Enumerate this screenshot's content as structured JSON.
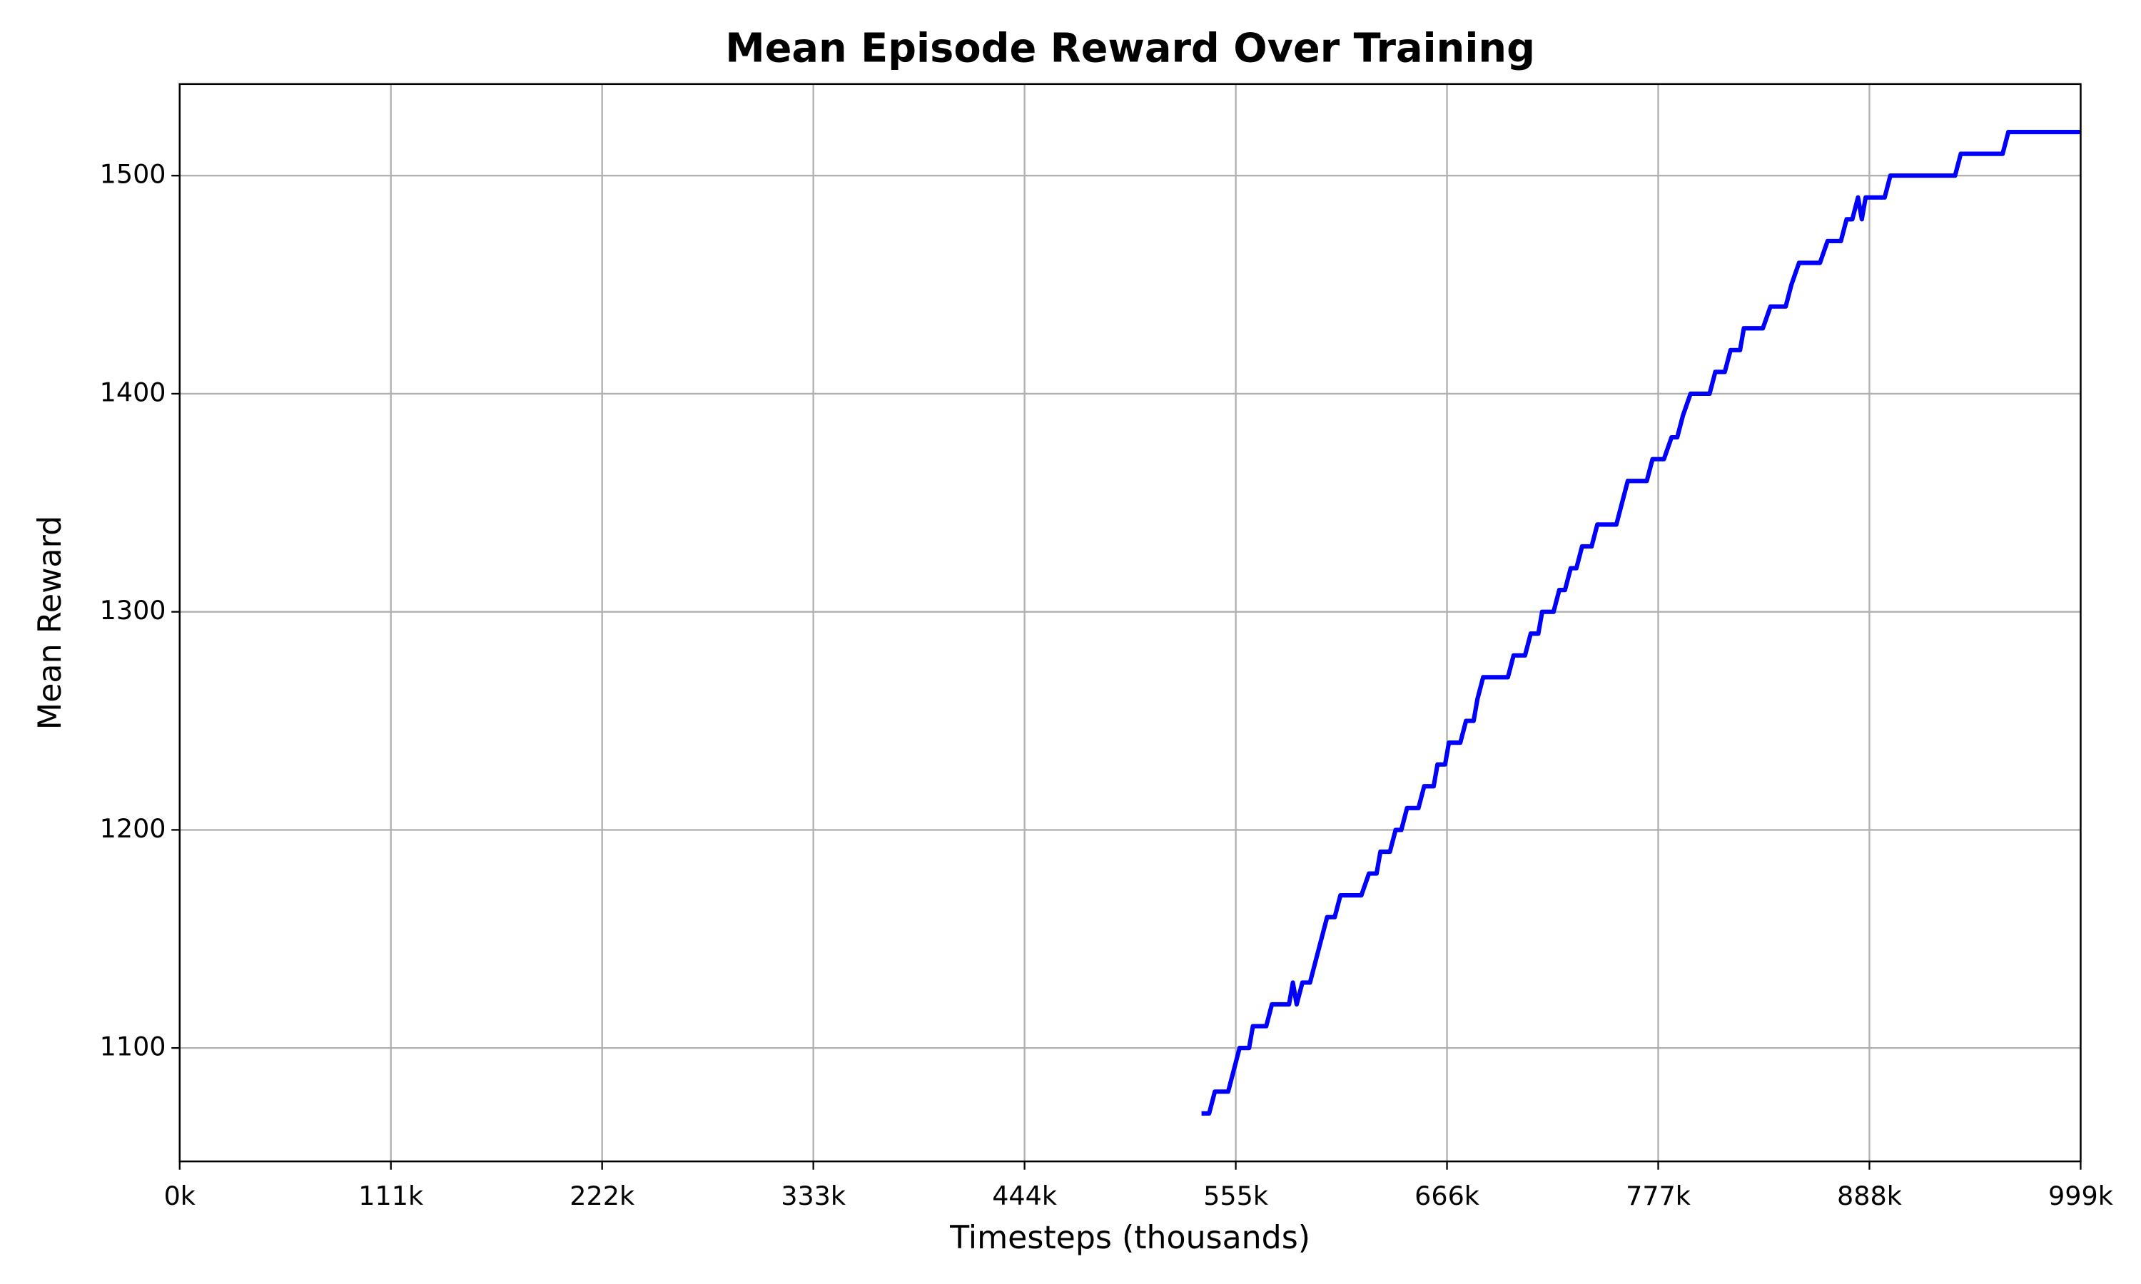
{
  "chart_data": {
    "type": "line",
    "title": "Mean Episode Reward Over Training",
    "x_label": "Timesteps (thousands)",
    "y_label": "Mean Reward",
    "xlim": [
      0,
      999
    ],
    "ylim": [
      1048,
      1542
    ],
    "xticks": [
      {
        "value": 0,
        "label": "0k"
      },
      {
        "value": 111,
        "label": "111k"
      },
      {
        "value": 222,
        "label": "222k"
      },
      {
        "value": 333,
        "label": "333k"
      },
      {
        "value": 444,
        "label": "444k"
      },
      {
        "value": 555,
        "label": "555k"
      },
      {
        "value": 666,
        "label": "666k"
      },
      {
        "value": 777,
        "label": "777k"
      },
      {
        "value": 888,
        "label": "888k"
      },
      {
        "value": 999,
        "label": "999k"
      }
    ],
    "yticks": [
      1100,
      1200,
      1300,
      1400,
      1500
    ],
    "grid": true,
    "series": [
      {
        "color": "#0000ff",
        "x": [
          537,
          541,
          544,
          551,
          554,
          557,
          562,
          564,
          571,
          574,
          583,
          585,
          587,
          590,
          594,
          597,
          600,
          603,
          607,
          610,
          621,
          625,
          629,
          631,
          636,
          639,
          642,
          645,
          651,
          654,
          659,
          661,
          665,
          667,
          673,
          676,
          680,
          682,
          685,
          698,
          701,
          707,
          710,
          714,
          716,
          722,
          725,
          728,
          731,
          734,
          737,
          742,
          745,
          755,
          758,
          761,
          771,
          774,
          780,
          784,
          787,
          790,
          794,
          804,
          807,
          812,
          815,
          820,
          822,
          832,
          836,
          844,
          847,
          851,
          862,
          866,
          873,
          876,
          879,
          882,
          884,
          886,
          896,
          899,
          933,
          936,
          958,
          961,
          999
        ],
        "values": [
          1070,
          1070,
          1080,
          1080,
          1090,
          1100,
          1100,
          1110,
          1110,
          1120,
          1120,
          1130,
          1120,
          1130,
          1130,
          1140,
          1150,
          1160,
          1160,
          1170,
          1170,
          1180,
          1180,
          1190,
          1190,
          1200,
          1200,
          1210,
          1210,
          1220,
          1220,
          1230,
          1230,
          1240,
          1240,
          1250,
          1250,
          1260,
          1270,
          1270,
          1280,
          1280,
          1290,
          1290,
          1300,
          1300,
          1310,
          1310,
          1320,
          1320,
          1330,
          1330,
          1340,
          1340,
          1350,
          1360,
          1360,
          1370,
          1370,
          1380,
          1380,
          1390,
          1400,
          1400,
          1410,
          1410,
          1420,
          1420,
          1430,
          1430,
          1440,
          1440,
          1450,
          1460,
          1460,
          1470,
          1470,
          1480,
          1480,
          1490,
          1480,
          1490,
          1490,
          1500,
          1500,
          1510,
          1510,
          1520,
          1520
        ]
      }
    ]
  }
}
